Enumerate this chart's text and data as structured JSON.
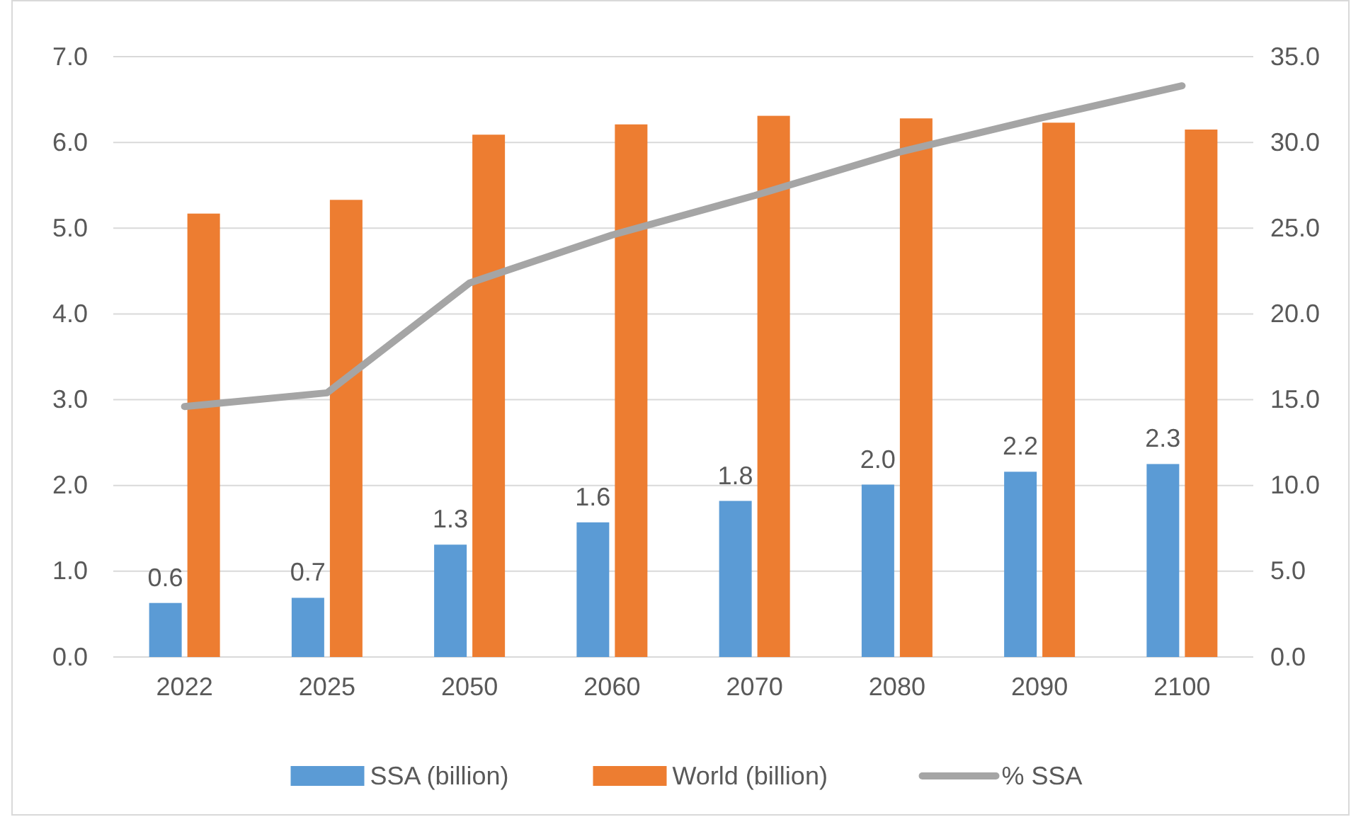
{
  "chart_data": {
    "type": "bar",
    "categories": [
      "2022",
      "2025",
      "2050",
      "2060",
      "2070",
      "2080",
      "2090",
      "2100"
    ],
    "series": [
      {
        "name": "SSA (billion)",
        "color": "#5b9bd5",
        "values": [
          0.63,
          0.69,
          1.31,
          1.57,
          1.82,
          2.01,
          2.16,
          2.25
        ],
        "value_labels": [
          "0.6",
          "0.7",
          "1.3",
          "1.6",
          "1.8",
          "2.0",
          "2.2",
          "2.3"
        ]
      },
      {
        "name": "World (billion)",
        "color": "#ed7d31",
        "values": [
          5.17,
          5.33,
          6.09,
          6.21,
          6.31,
          6.28,
          6.23,
          6.15
        ]
      },
      {
        "name": "% SSA",
        "type": "line",
        "axis": "y2",
        "color": "#a5a5a5",
        "values": [
          14.6,
          15.4,
          21.8,
          24.6,
          26.9,
          29.4,
          31.4,
          33.3
        ]
      }
    ],
    "ylim": [
      0,
      7
    ],
    "yticks": [
      {
        "value": 0,
        "label": "0.0"
      },
      {
        "value": 1,
        "label": "1.0"
      },
      {
        "value": 2,
        "label": "2.0"
      },
      {
        "value": 3,
        "label": "3.0"
      },
      {
        "value": 4,
        "label": "4.0"
      },
      {
        "value": 5,
        "label": "5.0"
      },
      {
        "value": 6,
        "label": "6.0"
      },
      {
        "value": 7,
        "label": "7.0"
      }
    ],
    "y2lim": [
      0,
      35
    ],
    "y2ticks": [
      {
        "value": 0,
        "label": "0.0"
      },
      {
        "value": 5,
        "label": "5.0"
      },
      {
        "value": 10,
        "label": "10.0"
      },
      {
        "value": 15,
        "label": "15.0"
      },
      {
        "value": 20,
        "label": "20.0"
      },
      {
        "value": 25,
        "label": "25.0"
      },
      {
        "value": 30,
        "label": "30.0"
      },
      {
        "value": 35,
        "label": "35.0"
      }
    ],
    "grid": "y",
    "legend": "bottom",
    "marker": "none",
    "line_style": "solid"
  }
}
